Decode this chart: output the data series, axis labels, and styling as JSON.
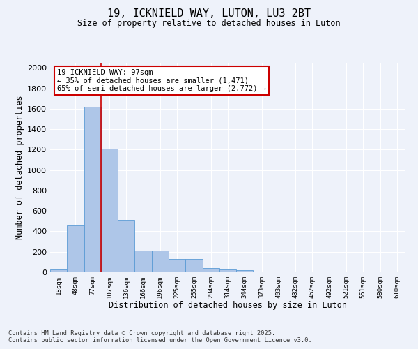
{
  "title": "19, ICKNIELD WAY, LUTON, LU3 2BT",
  "subtitle": "Size of property relative to detached houses in Luton",
  "xlabel": "Distribution of detached houses by size in Luton",
  "ylabel": "Number of detached properties",
  "categories": [
    "18sqm",
    "48sqm",
    "77sqm",
    "107sqm",
    "136sqm",
    "166sqm",
    "196sqm",
    "225sqm",
    "255sqm",
    "284sqm",
    "314sqm",
    "344sqm",
    "373sqm",
    "403sqm",
    "432sqm",
    "462sqm",
    "492sqm",
    "521sqm",
    "551sqm",
    "580sqm",
    "610sqm"
  ],
  "values": [
    30,
    460,
    1620,
    1210,
    510,
    215,
    215,
    130,
    130,
    40,
    25,
    20,
    0,
    0,
    0,
    0,
    0,
    0,
    0,
    0,
    0
  ],
  "bar_color": "#aec6e8",
  "bar_edge_color": "#5b9bd5",
  "background_color": "#eef2fa",
  "grid_color": "#ffffff",
  "vline_color": "#cc0000",
  "vline_x_index": 2.5,
  "annotation_text": "19 ICKNIELD WAY: 97sqm\n← 35% of detached houses are smaller (1,471)\n65% of semi-detached houses are larger (2,772) →",
  "annotation_box_facecolor": "#ffffff",
  "annotation_box_edgecolor": "#cc0000",
  "ylim": [
    0,
    2050
  ],
  "yticks": [
    0,
    200,
    400,
    600,
    800,
    1000,
    1200,
    1400,
    1600,
    1800,
    2000
  ],
  "footer_line1": "Contains HM Land Registry data © Crown copyright and database right 2025.",
  "footer_line2": "Contains public sector information licensed under the Open Government Licence v3.0."
}
